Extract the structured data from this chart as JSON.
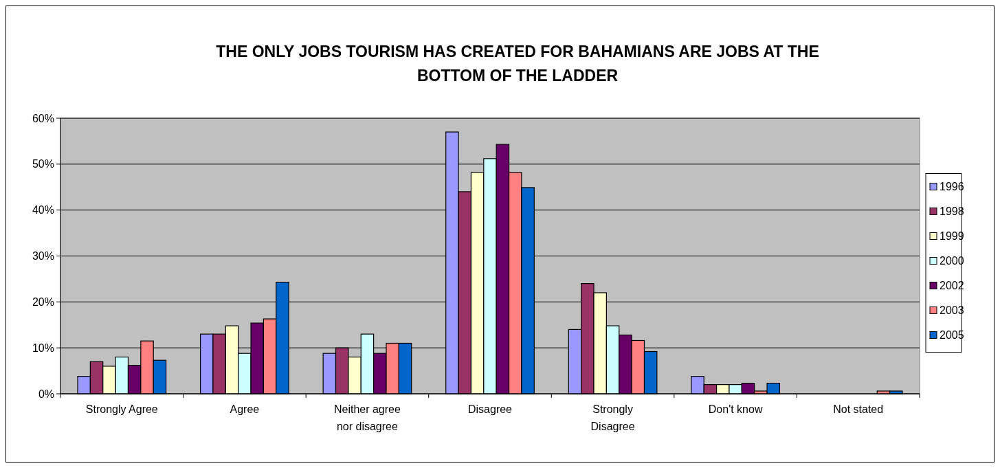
{
  "chart_data": {
    "type": "bar",
    "title": "THE ONLY JOBS TOURISM HAS CREATED FOR BAHAMIANS ARE JOBS AT THE BOTTOM OF THE LADDER",
    "categories": [
      "Strongly Agree",
      "Agree",
      "Neither agree nor disagree",
      "Disagree",
      "Strongly Disagree",
      "Don't know",
      "Not stated"
    ],
    "series": [
      {
        "name": "1996",
        "color": "#9999ff",
        "values": [
          3.8,
          13,
          8.8,
          57,
          14,
          3.8,
          null
        ]
      },
      {
        "name": "1998",
        "color": "#993366",
        "values": [
          7,
          13,
          10,
          44,
          24,
          2,
          null
        ]
      },
      {
        "name": "1999",
        "color": "#ffffcc",
        "values": [
          6,
          14.8,
          8,
          48.2,
          22,
          2,
          null
        ]
      },
      {
        "name": "2000",
        "color": "#ccffff",
        "values": [
          8,
          8.8,
          13,
          51.2,
          14.8,
          2,
          null
        ]
      },
      {
        "name": "2002",
        "color": "#660066",
        "values": [
          6.2,
          15.4,
          8.8,
          54.3,
          12.8,
          2.3,
          null
        ]
      },
      {
        "name": "2003",
        "color": "#ff8080",
        "values": [
          11.5,
          16.3,
          11,
          48.2,
          11.6,
          0.6,
          0.6
        ]
      },
      {
        "name": "2005",
        "color": "#0066cc",
        "values": [
          7.3,
          24.3,
          11,
          44.9,
          9.2,
          2.3,
          0.6
        ]
      }
    ],
    "ylim": [
      0,
      60
    ],
    "yticks": [
      {
        "value": 0,
        "label": "0%"
      },
      {
        "value": 10,
        "label": "10%"
      },
      {
        "value": 20,
        "label": "20%"
      },
      {
        "value": 30,
        "label": "30%"
      },
      {
        "value": 40,
        "label": "40%"
      },
      {
        "value": 50,
        "label": "50%"
      },
      {
        "value": 60,
        "label": "60%"
      }
    ],
    "grid": "y",
    "legend": "right"
  }
}
